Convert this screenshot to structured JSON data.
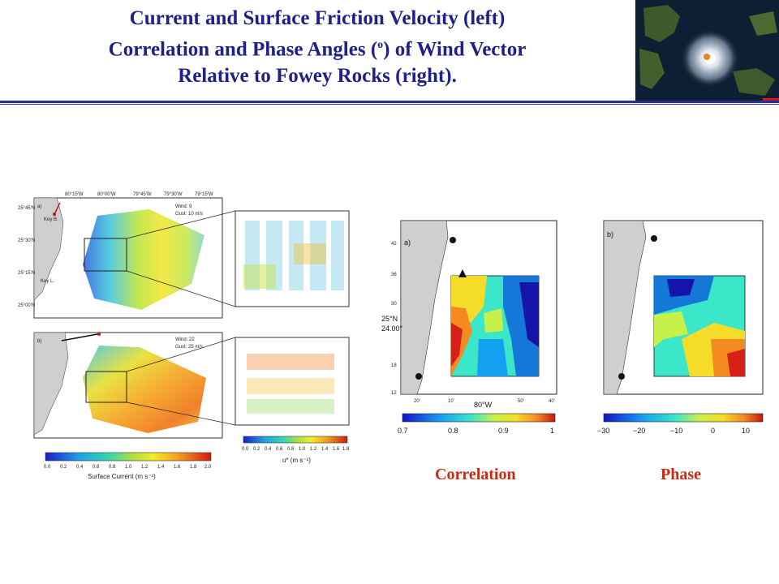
{
  "header": {
    "title_line1": "Current and Surface Friction Velocity (left)",
    "title_line2_pre": "Correlation and Phase Angles (",
    "title_line2_sup": "o",
    "title_line2_post": ") of Wind Vector",
    "title_line3": "Relative to Fowey Rocks (right)."
  },
  "left_figure": {
    "top_map": {
      "lon_labels": [
        "80°15'W",
        "80°00'W",
        "79°45'W",
        "79°30'W",
        "79°15'W"
      ],
      "lat_labels": [
        "25°45'N",
        "25°30'N",
        "25°15'N",
        "25°00'N"
      ],
      "panel_tag": "a)",
      "site_labels": [
        "Key B.",
        "Key L."
      ],
      "wind_text": "Wind: 9",
      "gust_text": "Gust: 10 m/s"
    },
    "bottom_map": {
      "panel_tag": "b)",
      "wind_text": "Wind: 22",
      "gust_text": "Gust: 25 m/s"
    },
    "surface_current_colorbar": {
      "ticks": [
        "0.0",
        "0.2",
        "0.4",
        "0.6",
        "0.8",
        "1.0",
        "1.2",
        "1.4",
        "1.6",
        "1.8",
        "2.0"
      ],
      "label": "Surface Current (m s⁻¹)"
    },
    "ustar_colorbar": {
      "ticks": [
        "0.0",
        "0.2",
        "0.4",
        "0.6",
        "0.8",
        "1.0",
        "1.2",
        "1.4",
        "1.6",
        "1.8"
      ],
      "label": "u* (m s⁻¹)"
    }
  },
  "right_figure": {
    "correlation_map": {
      "panel_tag": "a)",
      "lat_ticks": [
        "42",
        "36",
        "30",
        "25°N",
        "24.00°",
        "18",
        "12"
      ],
      "lon_ticks": [
        "20'",
        "10'",
        "80°W",
        "50'",
        "40'"
      ],
      "colorbar_ticks": [
        "0.7",
        "0.8",
        "0.9",
        "1"
      ]
    },
    "phase_map": {
      "panel_tag": "b)",
      "colorbar_ticks": [
        "−30",
        "−20",
        "−10",
        "0",
        "10"
      ]
    },
    "labels": {
      "correlation": "Correlation",
      "phase": "Phase"
    }
  }
}
